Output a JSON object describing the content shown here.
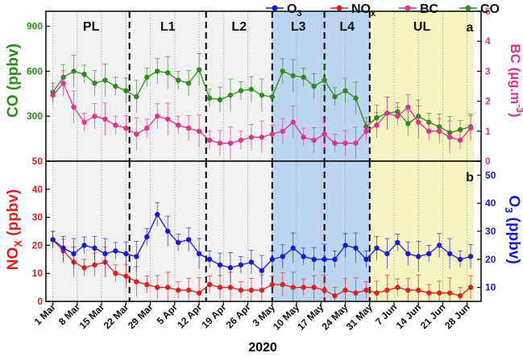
{
  "chart_data": [
    {
      "id": "a",
      "type": "line",
      "panel_label": "a",
      "phases": [
        {
          "name": "PL",
          "start": 0,
          "end": 22,
          "shade": "#f2f2f2"
        },
        {
          "name": "L1",
          "start": 22,
          "end": 44,
          "shade": "#f2f2f2"
        },
        {
          "name": "L2",
          "start": 44,
          "end": 63,
          "shade": "#f2f2f2"
        },
        {
          "name": "L3",
          "start": 63,
          "end": 78,
          "shade": "#bcd6f2"
        },
        {
          "name": "L4",
          "start": 78,
          "end": 91,
          "shade": "#bcd6f2"
        },
        {
          "name": "UL",
          "start": 91,
          "end": 121,
          "shade": "#f7f4c4"
        }
      ],
      "y_left": {
        "label": "CO (ppbv)",
        "ticks": [
          300,
          600,
          900
        ],
        "range": [
          0,
          1000
        ],
        "color": "#2e8b1e"
      },
      "y_right": {
        "label": "BC (µg.m-3)",
        "ticks": [
          0,
          1,
          2,
          3,
          4,
          5
        ],
        "range": [
          0,
          5
        ],
        "color": "#e0338f"
      },
      "series": [
        {
          "name": "CO",
          "color": "#2e8b1e",
          "axis": "left",
          "x": [
            0,
            3,
            6,
            9,
            12,
            15,
            18,
            21,
            24,
            27,
            30,
            33,
            36,
            39,
            42,
            45,
            48,
            51,
            54,
            57,
            60,
            63,
            66,
            69,
            72,
            75,
            78,
            81,
            84,
            87,
            90,
            93,
            96,
            99,
            102,
            105,
            108,
            111,
            114,
            117,
            120
          ],
          "values": [
            460,
            560,
            600,
            580,
            520,
            540,
            500,
            470,
            430,
            560,
            600,
            590,
            540,
            520,
            610,
            420,
            410,
            440,
            470,
            480,
            440,
            430,
            600,
            570,
            560,
            500,
            540,
            430,
            470,
            420,
            230,
            290,
            320,
            330,
            250,
            300,
            260,
            230,
            190,
            210,
            230
          ]
        },
        {
          "name": "BC",
          "color": "#e0338f",
          "axis": "right",
          "x": [
            0,
            3,
            6,
            9,
            12,
            15,
            18,
            21,
            24,
            27,
            30,
            33,
            36,
            39,
            42,
            45,
            48,
            51,
            54,
            57,
            60,
            63,
            66,
            69,
            72,
            75,
            78,
            81,
            84,
            87,
            90,
            93,
            96,
            99,
            102,
            105,
            108,
            111,
            114,
            117,
            120
          ],
          "values": [
            2.2,
            2.6,
            1.8,
            1.3,
            1.5,
            1.4,
            1.2,
            1.1,
            0.9,
            1.1,
            1.5,
            1.4,
            1.2,
            1.1,
            1.0,
            0.7,
            0.6,
            0.6,
            0.7,
            0.8,
            0.8,
            0.9,
            1.0,
            1.3,
            0.8,
            0.7,
            0.9,
            0.6,
            0.6,
            0.6,
            1.0,
            1.2,
            1.6,
            1.5,
            1.8,
            1.3,
            1.0,
            1.0,
            0.8,
            0.7,
            1.1
          ]
        }
      ]
    },
    {
      "id": "b",
      "type": "line",
      "panel_label": "b",
      "phases": [
        {
          "name": "PL",
          "start": 0,
          "end": 22,
          "shade": "#f2f2f2"
        },
        {
          "name": "L1",
          "start": 22,
          "end": 44,
          "shade": "#f2f2f2"
        },
        {
          "name": "L2",
          "start": 44,
          "end": 63,
          "shade": "#f2f2f2"
        },
        {
          "name": "L3",
          "start": 63,
          "end": 78,
          "shade": "#bcd6f2"
        },
        {
          "name": "L4",
          "start": 78,
          "end": 91,
          "shade": "#bcd6f2"
        },
        {
          "name": "UL",
          "start": 91,
          "end": 121,
          "shade": "#f7f4c4"
        }
      ],
      "y_left": {
        "label": "NOx (ppbv)",
        "ticks": [
          0,
          10,
          20,
          30,
          40,
          50
        ],
        "range": [
          0,
          50
        ],
        "color": "#e02020"
      },
      "y_right": {
        "label": "O3 (ppbv)",
        "ticks": [
          10,
          20,
          30,
          40,
          50
        ],
        "range": [
          5,
          55
        ],
        "color": "#1a1ad6"
      },
      "series": [
        {
          "name": "NOx",
          "color": "#e02020",
          "axis": "left",
          "x": [
            0,
            3,
            6,
            9,
            12,
            15,
            18,
            21,
            24,
            27,
            30,
            33,
            36,
            39,
            42,
            45,
            48,
            51,
            54,
            57,
            60,
            63,
            66,
            69,
            72,
            75,
            78,
            81,
            84,
            87,
            90,
            93,
            96,
            99,
            102,
            105,
            108,
            111,
            114,
            117,
            120
          ],
          "values": [
            22,
            18,
            14,
            12,
            13,
            14,
            10,
            9,
            7,
            6,
            5,
            5,
            4,
            4,
            3,
            6,
            5,
            5,
            4,
            4,
            4,
            6,
            6,
            5,
            5,
            5,
            4,
            2,
            4,
            3,
            4,
            3,
            4,
            5,
            4,
            4,
            3,
            3,
            3,
            2,
            5
          ]
        },
        {
          "name": "O3",
          "color": "#1a1ad6",
          "axis": "right",
          "x": [
            0,
            3,
            6,
            9,
            12,
            15,
            18,
            21,
            24,
            27,
            30,
            33,
            36,
            39,
            42,
            45,
            48,
            51,
            54,
            57,
            60,
            63,
            66,
            69,
            72,
            75,
            78,
            81,
            84,
            87,
            90,
            93,
            96,
            99,
            102,
            105,
            108,
            111,
            114,
            117,
            120
          ],
          "values": [
            27,
            24,
            22,
            25,
            24,
            22,
            23,
            22,
            21,
            28,
            36,
            30,
            26,
            27,
            22,
            20,
            18,
            17,
            18,
            19,
            16,
            20,
            21,
            24,
            21,
            20,
            20,
            20,
            25,
            24,
            20,
            24,
            22,
            26,
            22,
            21,
            22,
            25,
            22,
            20,
            21
          ]
        }
      ]
    }
  ],
  "legend": [
    {
      "name": "O",
      "sub": "3",
      "color": "#1a1ad6"
    },
    {
      "name": "NO",
      "sub": "x",
      "color": "#e02020"
    },
    {
      "name": "BC",
      "sub": "",
      "color": "#e0338f"
    },
    {
      "name": "CO",
      "sub": "",
      "color": "#2e8b1e"
    }
  ],
  "x_axis": {
    "label": "2020",
    "tick_labels": [
      "1 Mar",
      "8 Mar",
      "15 Mar",
      "22 Mar",
      "29 Mar",
      "5 Apr",
      "12 Apr",
      "19 Apr",
      "26 Apr",
      "3 May",
      "10 May",
      "17 May",
      "24 May",
      "31 May",
      "7 Jun",
      "14 Jun",
      "21 Jun",
      "28 Jun"
    ],
    "tick_days": [
      0,
      7,
      14,
      21,
      28,
      35,
      42,
      49,
      56,
      63,
      70,
      77,
      84,
      91,
      98,
      105,
      112,
      119
    ],
    "range": [
      -2,
      123
    ]
  },
  "axis_titles": {
    "co": "CO (ppbv)",
    "bc_main": "BC (µg.m",
    "bc_sup": "-3",
    "bc_end": ")",
    "nox_main": "NO",
    "nox_sub": "X",
    "nox_end": " (ppbv)",
    "o3_main": "O",
    "o3_sub": "3",
    "o3_end": " (ppbv)"
  },
  "colors": {
    "co": "#2e8b1e",
    "bc": "#e0338f",
    "nox": "#e02020",
    "o3": "#1a1ad6"
  }
}
